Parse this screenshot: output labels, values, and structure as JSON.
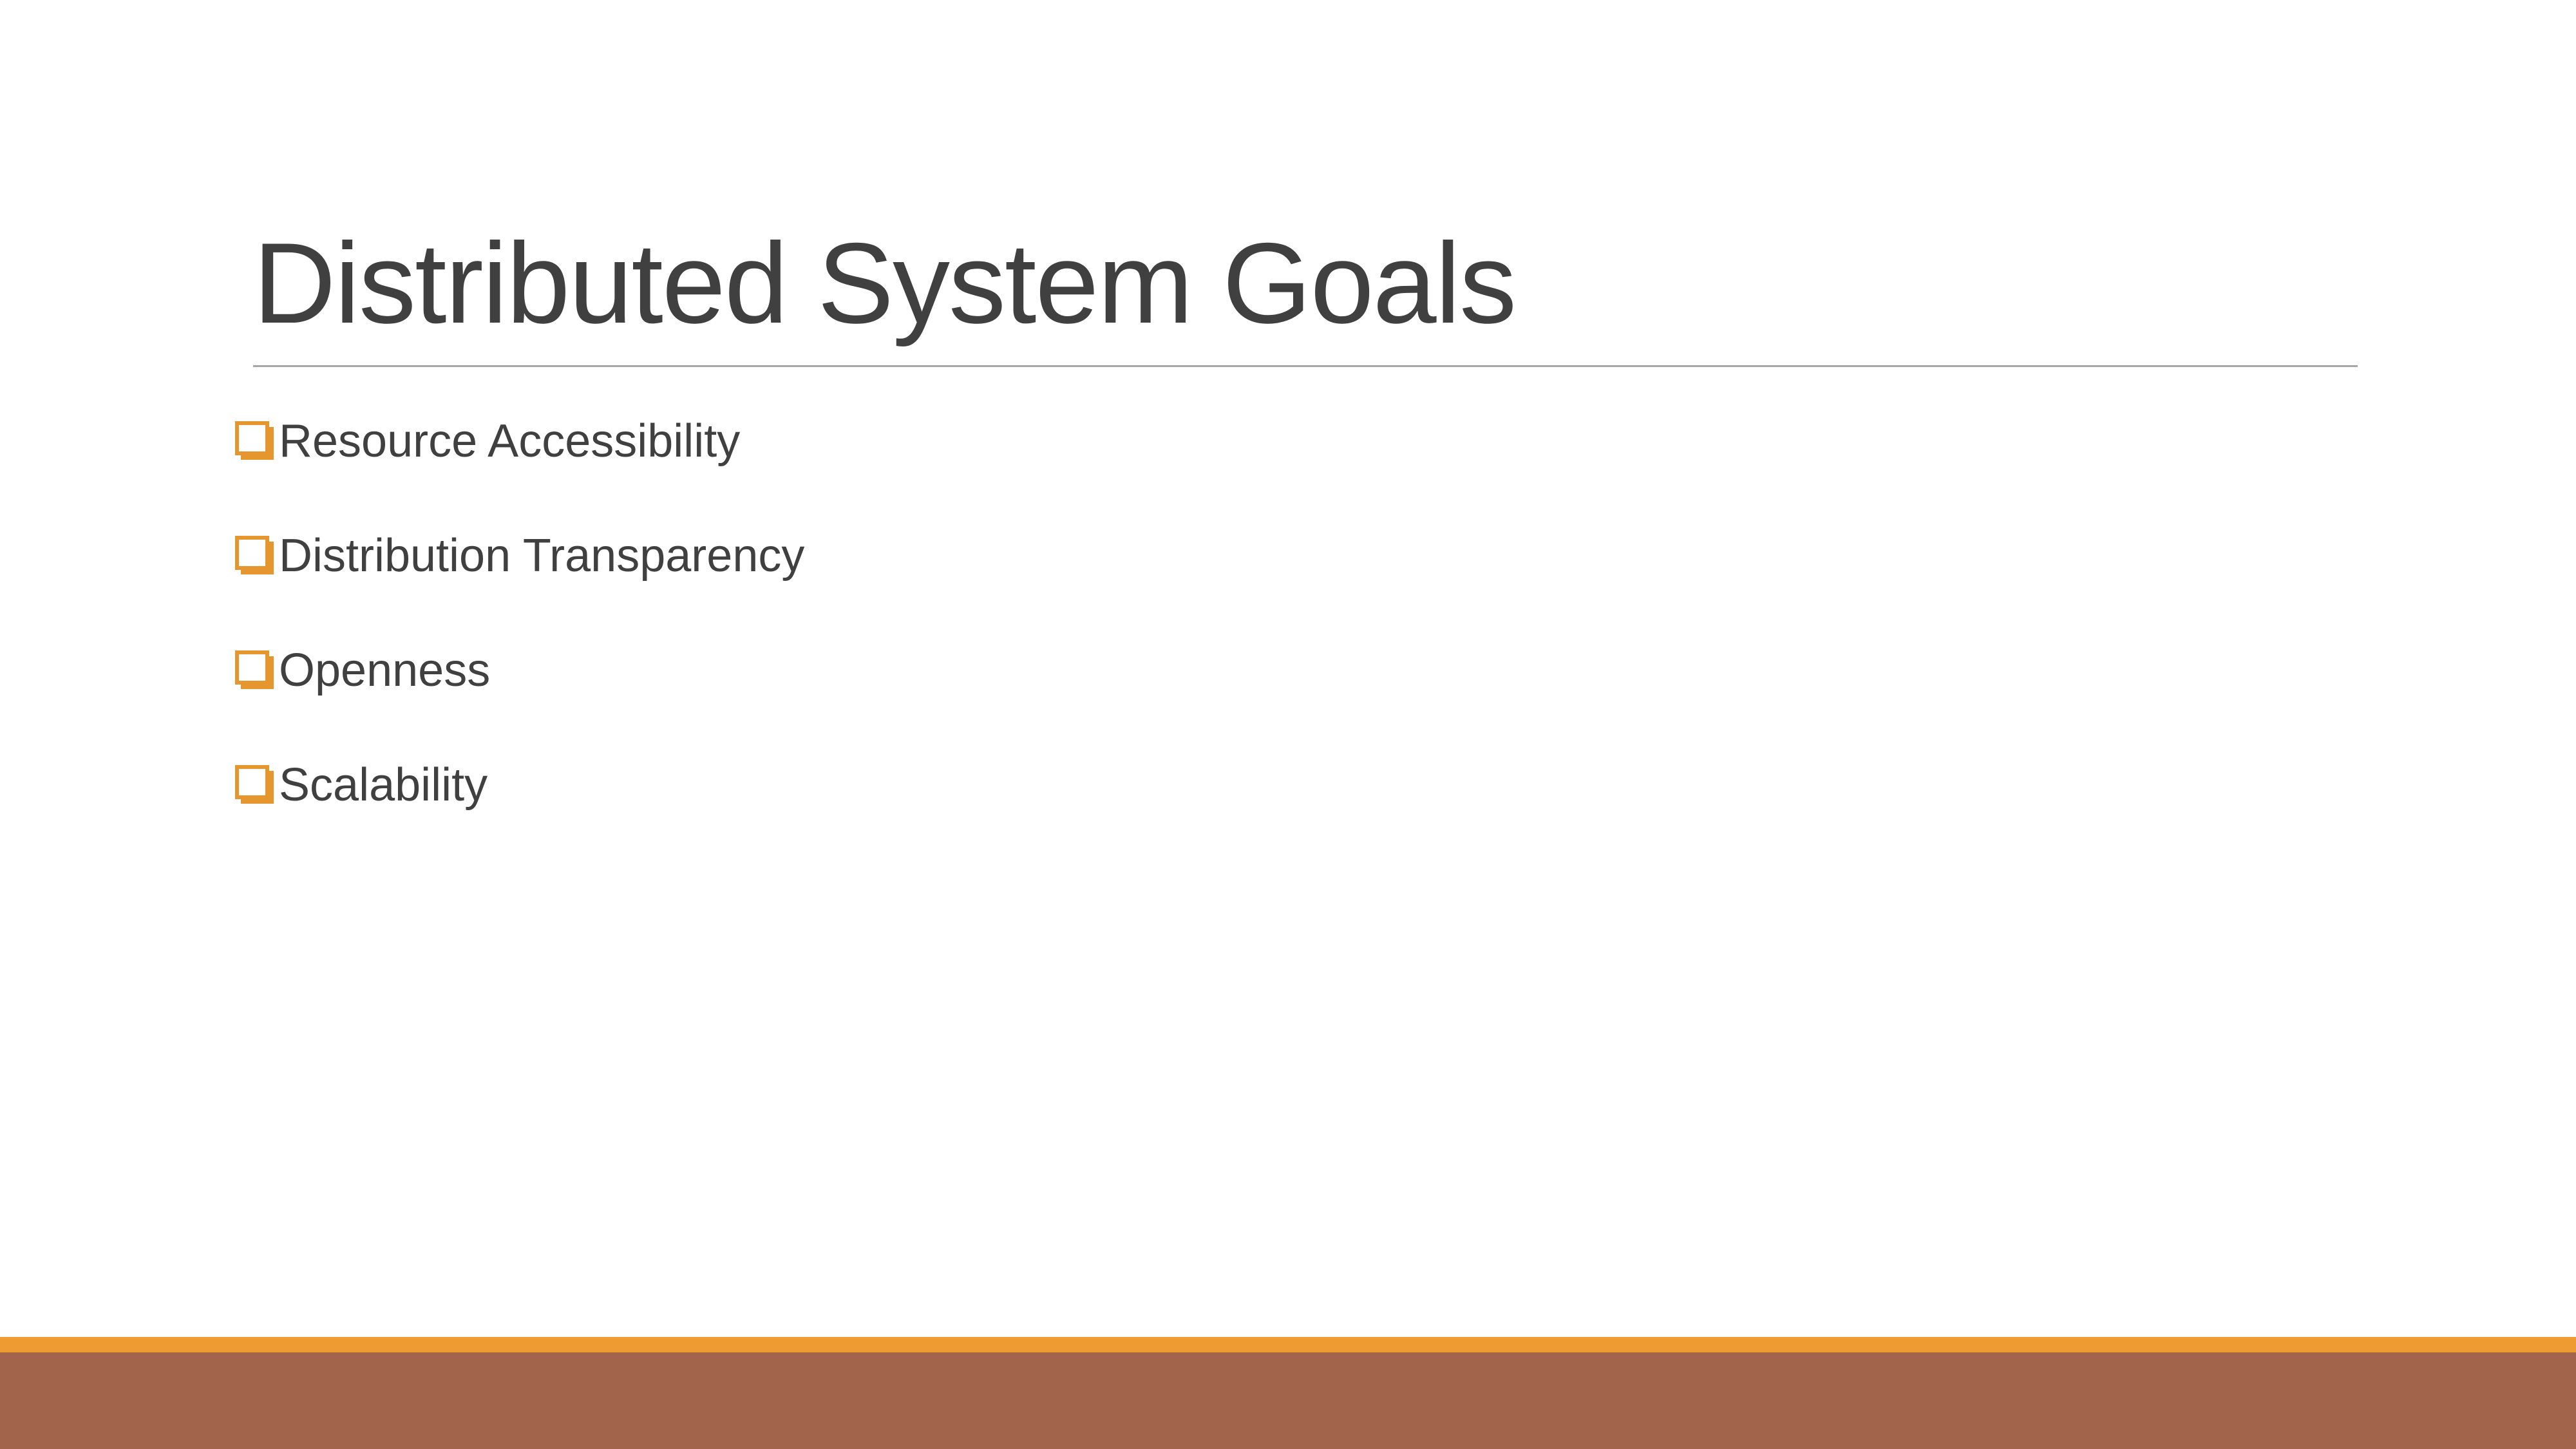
{
  "slide": {
    "title": "Distributed System Goals",
    "bullets": [
      {
        "label": "Resource Accessibility"
      },
      {
        "label": "Distribution Transparency"
      },
      {
        "label": "Openness"
      },
      {
        "label": "Scalability"
      }
    ]
  },
  "theme": {
    "bullet_icon": "checkbox-square-icon",
    "accent_color": "#ee9c32",
    "band_color": "#a3644c",
    "text_color": "#404040",
    "rule_color": "#a6a6a6"
  }
}
